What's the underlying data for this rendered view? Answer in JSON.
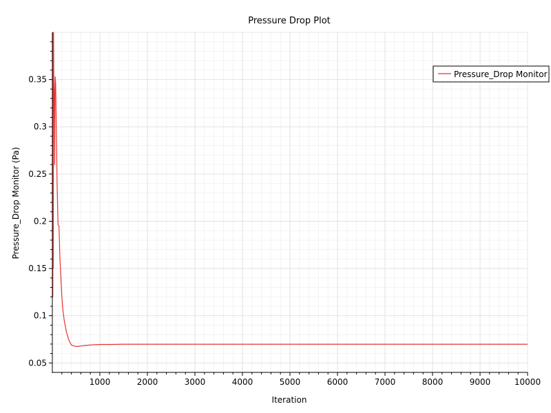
{
  "chart_data": {
    "type": "line",
    "title": "Pressure Drop Plot",
    "xlabel": "Iteration",
    "ylabel": "Pressure_Drop Monitor (Pa)",
    "xlim": [
      0,
      10000
    ],
    "ylim": [
      0.04,
      0.4
    ],
    "x_ticks": [
      1000,
      2000,
      3000,
      4000,
      5000,
      6000,
      7000,
      8000,
      9000,
      10000
    ],
    "y_ticks": [
      0.05,
      0.1,
      0.15,
      0.2,
      0.25,
      0.3,
      0.35
    ],
    "x_tick_labels": [
      "1000",
      "2000",
      "3000",
      "4000",
      "5000",
      "6000",
      "7000",
      "8000",
      "9000",
      "10000"
    ],
    "y_tick_labels": [
      "0.05",
      "0.1",
      "0.15",
      "0.2",
      "0.25",
      "0.3",
      "0.35"
    ],
    "grid": true,
    "legend_position": "top-right",
    "series": [
      {
        "name": "Pressure_Drop Monitor",
        "color": "#e8302e",
        "x": [
          2,
          6,
          10,
          15,
          20,
          25,
          30,
          40,
          50,
          55,
          60,
          70,
          80,
          90,
          100,
          120,
          140,
          160,
          180,
          200,
          220,
          250,
          300,
          350,
          400,
          450,
          500,
          550,
          600,
          700,
          800,
          1000,
          1200,
          1500,
          2000,
          3000,
          5000,
          7000,
          8000,
          9000,
          10000
        ],
        "y": [
          0.4,
          0.13,
          0.12,
          0.4,
          0.15,
          0.4,
          0.35,
          0.33,
          0.26,
          0.34,
          0.353,
          0.345,
          0.31,
          0.28,
          0.24,
          0.196,
          0.195,
          0.16,
          0.14,
          0.12,
          0.107,
          0.095,
          0.082,
          0.074,
          0.069,
          0.068,
          0.0675,
          0.0675,
          0.068,
          0.0685,
          0.069,
          0.0695,
          0.0695,
          0.0698,
          0.0698,
          0.0698,
          0.0698,
          0.0698,
          0.0698,
          0.0698,
          0.0698
        ]
      }
    ]
  }
}
